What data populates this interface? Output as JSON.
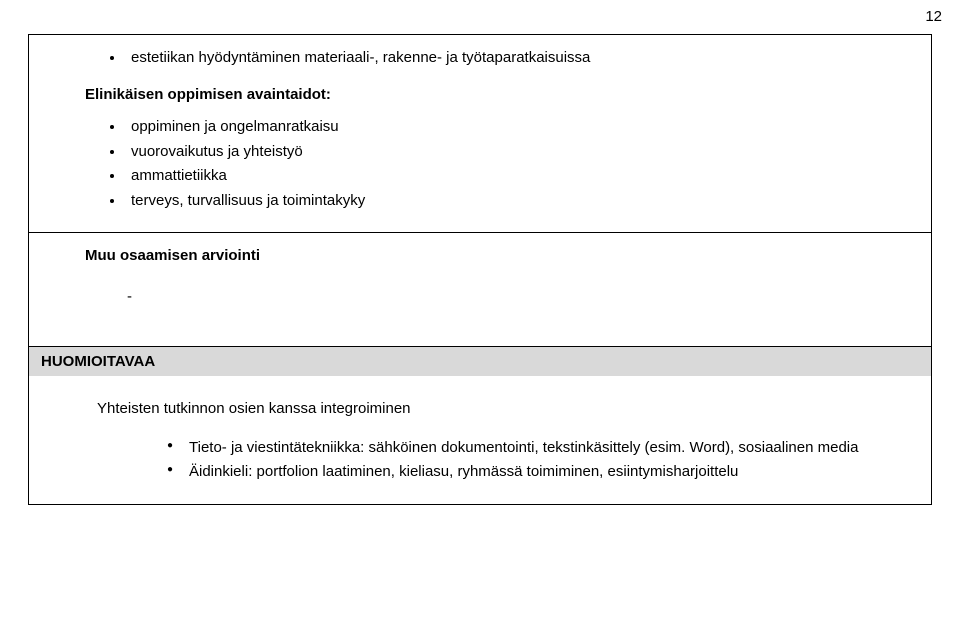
{
  "page_number": "12",
  "section1": {
    "top_bullet": "estetiikan hyödyntäminen materiaali-, rakenne- ja työtaparatkaisuissa",
    "heading": "Elinikäisen oppimisen avaintaidot:",
    "bullets": [
      "oppiminen ja ongelmanratkaisu",
      "vuorovaikutus ja yhteistyö",
      "ammattietiikka",
      "terveys, turvallisuus ja toimintakyky"
    ]
  },
  "section2": {
    "heading": "Muu osaamisen arviointi",
    "dash": "-"
  },
  "section3": {
    "header": "HUOMIOITAVAA",
    "subheading": "Yhteisten tutkinnon osien kanssa integroiminen",
    "bullets": [
      "Tieto- ja viestintätekniikka: sähköinen dokumentointi, tekstinkäsittely (esim. Word), sosiaalinen media",
      "Äidinkieli: portfolion laatiminen, kieliasu, ryhmässä toimiminen, esiintymisharjoittelu"
    ]
  }
}
